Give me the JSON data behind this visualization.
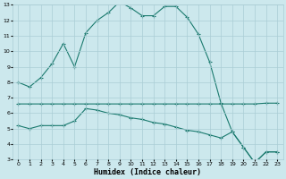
{
  "xlabel": "Humidex (Indice chaleur)",
  "background_color": "#cce8ed",
  "grid_color": "#aacdd5",
  "line_color": "#1a7a6e",
  "x_main": [
    0,
    1,
    2,
    3,
    4,
    5,
    6,
    7,
    8,
    9,
    10,
    11,
    12,
    13,
    14,
    15,
    16,
    17,
    18,
    19,
    20,
    21,
    22,
    23
  ],
  "y_main": [
    8.0,
    7.7,
    8.3,
    9.2,
    10.5,
    9.0,
    11.2,
    12.0,
    12.5,
    13.2,
    12.8,
    12.3,
    12.3,
    12.9,
    12.9,
    12.2,
    11.1,
    9.3,
    6.65,
    4.8,
    3.8,
    2.8,
    3.5,
    3.5
  ],
  "x_line2": [
    0,
    1,
    2,
    3,
    4,
    5,
    6,
    7,
    8,
    9,
    10,
    11,
    12,
    13,
    14,
    15,
    16,
    17,
    18,
    19,
    20,
    21,
    22,
    23
  ],
  "y_line2": [
    6.6,
    6.6,
    6.6,
    6.6,
    6.6,
    6.6,
    6.6,
    6.6,
    6.6,
    6.6,
    6.6,
    6.6,
    6.6,
    6.6,
    6.6,
    6.6,
    6.6,
    6.6,
    6.6,
    6.6,
    6.6,
    6.6,
    6.65,
    6.65
  ],
  "x_line3": [
    0,
    1,
    2,
    3,
    4,
    5,
    6,
    7,
    8,
    9,
    10,
    11,
    12,
    13,
    14,
    15,
    16,
    17,
    18,
    19,
    20,
    21,
    22,
    23
  ],
  "y_line3": [
    5.2,
    5.0,
    5.2,
    5.2,
    5.2,
    5.5,
    6.3,
    6.2,
    6.0,
    5.9,
    5.7,
    5.6,
    5.4,
    5.3,
    5.1,
    4.9,
    4.8,
    4.6,
    4.4,
    4.8,
    3.8,
    2.8,
    3.5,
    3.5
  ],
  "ylim": [
    3,
    13
  ],
  "xlim": [
    -0.5,
    23.5
  ],
  "yticks": [
    3,
    4,
    5,
    6,
    7,
    8,
    9,
    10,
    11,
    12,
    13
  ],
  "xticks": [
    0,
    1,
    2,
    3,
    4,
    5,
    6,
    7,
    8,
    9,
    10,
    11,
    12,
    13,
    14,
    15,
    16,
    17,
    18,
    19,
    20,
    21,
    22,
    23
  ],
  "marker": "+",
  "markersize": 3,
  "linewidth": 0.8,
  "tick_fontsize": 4.5,
  "label_fontsize": 6.0
}
